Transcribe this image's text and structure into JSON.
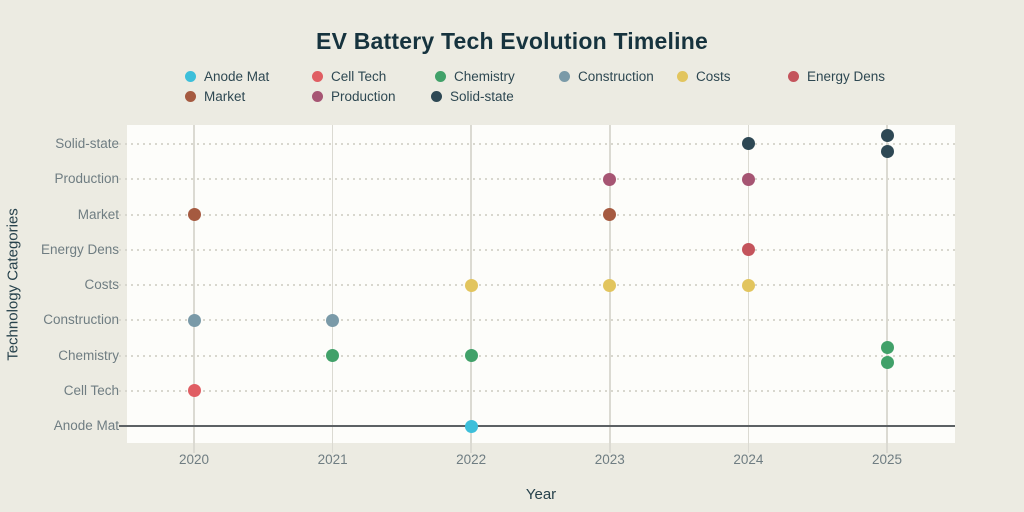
{
  "chart_data": {
    "type": "scatter",
    "title": "EV Battery Tech Evolution Timeline",
    "xlabel": "Year",
    "ylabel": "Technology Categories",
    "x_ticks": [
      "2020",
      "2021",
      "2022",
      "2023",
      "2024",
      "2025"
    ],
    "x_range": [
      2020,
      2025
    ],
    "y_categories_bottom_to_top": [
      "Anode Mat",
      "Cell Tech",
      "Chemistry",
      "Construction",
      "Costs",
      "Energy Dens",
      "Market",
      "Production",
      "Solid-state"
    ],
    "grid": "horizontal-dotted, vertical-solid, solid dark baseline at Anode Mat row",
    "legend_position": "top-left, two rows",
    "legend": [
      {
        "label": "Anode Mat",
        "color": "#3dbfda"
      },
      {
        "label": "Cell Tech",
        "color": "#e05e63"
      },
      {
        "label": "Chemistry",
        "color": "#41a169"
      },
      {
        "label": "Construction",
        "color": "#7a9aa8"
      },
      {
        "label": "Costs",
        "color": "#e2c55e"
      },
      {
        "label": "Energy Dens",
        "color": "#c4545c"
      },
      {
        "label": "Market",
        "color": "#a55a40"
      },
      {
        "label": "Production",
        "color": "#a65573"
      },
      {
        "label": "Solid-state",
        "color": "#2e4854"
      }
    ],
    "points": [
      {
        "year": 2020,
        "category": "Market",
        "dy": 0
      },
      {
        "year": 2020,
        "category": "Construction",
        "dy": 0
      },
      {
        "year": 2020,
        "category": "Cell Tech",
        "dy": 0
      },
      {
        "year": 2021,
        "category": "Construction",
        "dy": 0
      },
      {
        "year": 2021,
        "category": "Chemistry",
        "dy": 0
      },
      {
        "year": 2022,
        "category": "Costs",
        "dy": 0
      },
      {
        "year": 2022,
        "category": "Chemistry",
        "dy": 0
      },
      {
        "year": 2022,
        "category": "Anode Mat",
        "dy": 0
      },
      {
        "year": 2023,
        "category": "Production",
        "dy": 0
      },
      {
        "year": 2023,
        "category": "Market",
        "dy": 0
      },
      {
        "year": 2023,
        "category": "Costs",
        "dy": 0
      },
      {
        "year": 2024,
        "category": "Solid-state",
        "dy": -1
      },
      {
        "year": 2024,
        "category": "Production",
        "dy": 0
      },
      {
        "year": 2024,
        "category": "Energy Dens",
        "dy": 0
      },
      {
        "year": 2024,
        "category": "Costs",
        "dy": 0
      },
      {
        "year": 2025,
        "category": "Solid-state",
        "dy": -9
      },
      {
        "year": 2025,
        "category": "Solid-state",
        "dy": 7
      },
      {
        "year": 2025,
        "category": "Chemistry",
        "dy": -8
      },
      {
        "year": 2025,
        "category": "Chemistry",
        "dy": 7
      }
    ]
  }
}
